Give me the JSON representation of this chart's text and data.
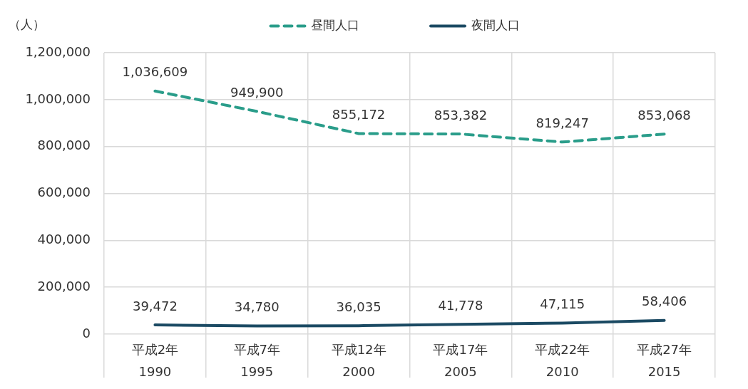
{
  "chart_data": {
    "type": "line",
    "ylabel": "（人）",
    "categories": [
      "平成2年\n1990",
      "平成7年\n1995",
      "平成12年\n2000",
      "平成17年\n2005",
      "平成22年\n2010",
      "平成27年\n2015"
    ],
    "series": [
      {
        "name": "昼間人口",
        "color": "#2a9d8a",
        "line_style": "dashed",
        "values": [
          1036609,
          949900,
          855172,
          853382,
          819247,
          853068
        ],
        "value_labels": [
          "1,036,609",
          "949,900",
          "855,172",
          "853,382",
          "819,247",
          "853,068"
        ]
      },
      {
        "name": "夜間人口",
        "color": "#1b4a63",
        "line_style": "solid",
        "values": [
          39472,
          34780,
          36035,
          41778,
          47115,
          58406
        ],
        "value_labels": [
          "39,472",
          "34,780",
          "36,035",
          "41,778",
          "47,115",
          "58,406"
        ]
      }
    ],
    "ylim": [
      0,
      1200000
    ],
    "yticks": [
      0,
      {
        "value": 200000,
        "label": "200,000"
      },
      {
        "value": 400000,
        "label": "400,000"
      },
      {
        "value": 600000,
        "label": "600,000"
      },
      {
        "value": 800000,
        "label": "800,000"
      },
      {
        "value": 1000000,
        "label": "1,000,000"
      },
      {
        "value": 1200000,
        "label": "1,200,000"
      }
    ],
    "grid": true,
    "legend": "top",
    "marker": "none"
  }
}
